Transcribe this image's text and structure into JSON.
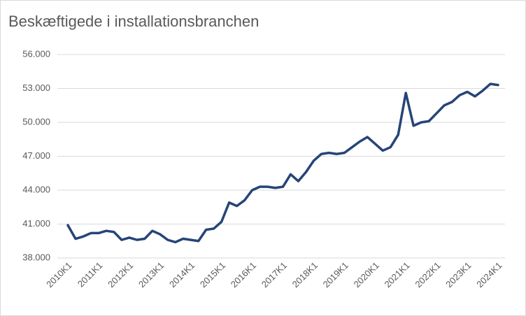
{
  "chart_data": {
    "type": "line",
    "title": "Beskæftigede i installationsbranchen",
    "categories": [
      "2010K1",
      null,
      null,
      null,
      "2011K1",
      null,
      null,
      null,
      "2012K1",
      null,
      null,
      null,
      "2013K1",
      null,
      null,
      null,
      "2014K1",
      null,
      null,
      null,
      "2015K1",
      null,
      null,
      null,
      "2016K1",
      null,
      null,
      null,
      "2017K1",
      null,
      null,
      null,
      "2018K1",
      null,
      null,
      null,
      "2019K1",
      null,
      null,
      null,
      "2020K1",
      null,
      null,
      null,
      "2021K1",
      null,
      null,
      null,
      "2022K1",
      null,
      null,
      null,
      "2023K1",
      null,
      null,
      null,
      "2024K1"
    ],
    "series": [
      {
        "name": "Beskæftigede",
        "color": "#264478",
        "values": [
          40900,
          39700,
          39900,
          40200,
          40200,
          40400,
          40300,
          39600,
          39800,
          39600,
          39700,
          40400,
          40100,
          39600,
          39400,
          39700,
          39600,
          39500,
          40500,
          40600,
          41200,
          42900,
          42600,
          43100,
          44000,
          44300,
          44300,
          44200,
          44300,
          45400,
          44800,
          45600,
          46600,
          47200,
          47300,
          47200,
          47300,
          47800,
          48300,
          48700,
          48100,
          47500,
          47800,
          48900,
          52600,
          49700,
          50000,
          50100,
          50800,
          51500,
          51800,
          52400,
          52700,
          52300,
          52800,
          53400,
          53300
        ]
      }
    ],
    "ylim": [
      38000,
      56000
    ],
    "yticks": [
      {
        "value": 38000,
        "label": "38.000"
      },
      {
        "value": 41000,
        "label": "41.000"
      },
      {
        "value": 44000,
        "label": "44.000"
      },
      {
        "value": 47000,
        "label": "47.000"
      },
      {
        "value": 50000,
        "label": "50.000"
      },
      {
        "value": 53000,
        "label": "53.000"
      },
      {
        "value": 56000,
        "label": "56.000"
      }
    ],
    "grid": true
  }
}
